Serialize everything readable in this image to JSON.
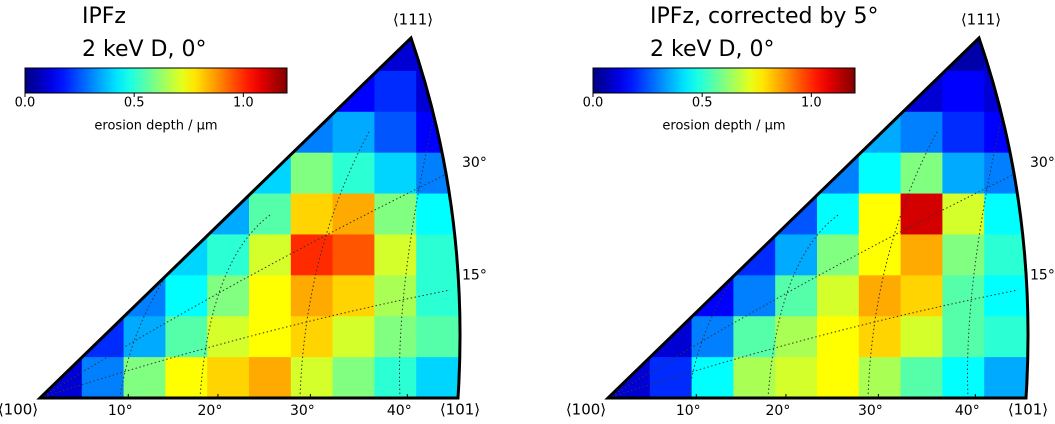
{
  "chart_data": [
    {
      "type": "heatmap",
      "title": "IPFz",
      "subtitle": "2 keV D, 0°",
      "corner_labels": [
        "⟨100⟩",
        "⟨101⟩",
        "⟨111⟩"
      ],
      "xticks": [
        {
          "value": 10,
          "label": "10°"
        },
        {
          "value": 20,
          "label": "20°"
        },
        {
          "value": 30,
          "label": "30°"
        },
        {
          "value": 40,
          "label": "40°"
        }
      ],
      "yticks": [
        {
          "value": 15,
          "label": "15°"
        },
        {
          "value": 30,
          "label": "30°"
        }
      ],
      "colorbar": {
        "label": "erosion depth / µm",
        "clim": [
          0,
          1.2
        ],
        "ticks": [
          {
            "value": 0,
            "label": "0.0"
          },
          {
            "value": 0.5,
            "label": "0.5"
          },
          {
            "value": 1,
            "label": "1.0"
          }
        ],
        "colormap": "jet"
      },
      "values": [
        [
          null,
          null,
          null,
          null,
          null,
          null,
          null,
          null,
          0.1,
          0.1
        ],
        [
          null,
          null,
          null,
          null,
          null,
          null,
          null,
          0.15,
          0.2,
          0.1
        ],
        [
          null,
          null,
          null,
          null,
          null,
          null,
          0.3,
          0.35,
          0.25,
          0.15
        ],
        [
          null,
          null,
          null,
          null,
          null,
          0.4,
          0.6,
          0.5,
          0.4,
          0.3
        ],
        [
          null,
          null,
          null,
          null,
          0.35,
          0.55,
          0.8,
          0.85,
          0.6,
          0.45
        ],
        [
          null,
          null,
          null,
          0.4,
          0.5,
          0.7,
          1.0,
          0.95,
          0.7,
          0.5
        ],
        [
          null,
          null,
          0.3,
          0.45,
          0.6,
          0.75,
          0.85,
          0.8,
          0.65,
          0.5
        ],
        [
          null,
          0.2,
          0.35,
          0.55,
          0.7,
          0.75,
          0.8,
          0.7,
          0.6,
          0.55
        ],
        [
          0.1,
          0.3,
          0.6,
          0.75,
          0.8,
          0.85,
          0.7,
          0.6,
          0.5,
          0.4
        ]
      ]
    },
    {
      "type": "heatmap",
      "title": "IPFz,  corrected by 5°",
      "subtitle": "2 keV D, 0°",
      "corner_labels": [
        "⟨100⟩",
        "⟨101⟩",
        "⟨111⟩"
      ],
      "xticks": [
        {
          "value": 10,
          "label": "10°"
        },
        {
          "value": 20,
          "label": "20°"
        },
        {
          "value": 30,
          "label": "30°"
        },
        {
          "value": 40,
          "label": "40°"
        }
      ],
      "yticks": [
        {
          "value": 15,
          "label": "15°"
        },
        {
          "value": 30,
          "label": "30°"
        }
      ],
      "colorbar": {
        "label": "erosion depth / µm",
        "clim": [
          0,
          1.2
        ],
        "ticks": [
          {
            "value": 0,
            "label": "0.0"
          },
          {
            "value": 0.5,
            "label": "0.5"
          },
          {
            "value": 1,
            "label": "1.0"
          }
        ],
        "colormap": "jet"
      },
      "values": [
        [
          null,
          null,
          null,
          null,
          null,
          null,
          null,
          null,
          0.05,
          0.1
        ],
        [
          null,
          null,
          null,
          null,
          null,
          null,
          null,
          0.1,
          0.15,
          0.1
        ],
        [
          null,
          null,
          null,
          null,
          null,
          null,
          0.35,
          0.3,
          0.2,
          0.15
        ],
        [
          null,
          null,
          null,
          null,
          null,
          0.3,
          0.45,
          0.6,
          0.35,
          0.3
        ],
        [
          null,
          null,
          null,
          null,
          0.25,
          0.45,
          0.75,
          1.1,
          0.7,
          0.45
        ],
        [
          null,
          null,
          null,
          0.2,
          0.35,
          0.6,
          0.75,
          0.85,
          0.6,
          0.5
        ],
        [
          null,
          null,
          0.15,
          0.3,
          0.55,
          0.7,
          0.85,
          0.8,
          0.55,
          0.45
        ],
        [
          null,
          0.1,
          0.3,
          0.55,
          0.65,
          0.75,
          0.8,
          0.7,
          0.55,
          0.5
        ],
        [
          0.1,
          0.2,
          0.45,
          0.65,
          0.7,
          0.75,
          0.65,
          0.55,
          0.45,
          0.35
        ]
      ]
    }
  ]
}
